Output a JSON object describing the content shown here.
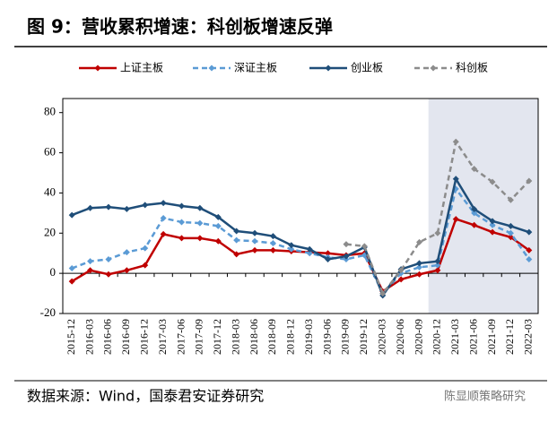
{
  "chart_data": {
    "type": "line",
    "title": "图 9：营收累积增速：科创板增速反弹",
    "source": "数据来源：Wind，国泰君安证券研究",
    "watermark": "陈显顺策略研究",
    "categories": [
      "2015-12",
      "2016-03",
      "2016-06",
      "2016-09",
      "2016-12",
      "2017-03",
      "2017-06",
      "2017-09",
      "2017-12",
      "2018-03",
      "2018-06",
      "2018-09",
      "2018-12",
      "2019-03",
      "2019-06",
      "2019-09",
      "2019-12",
      "2020-03",
      "2020-06",
      "2020-09",
      "2020-12",
      "2021-03",
      "2021-06",
      "2021-09",
      "2021-12",
      "2022-03"
    ],
    "series": [
      {
        "name": "上证主板",
        "color": "#c00000",
        "dashed": false,
        "values": [
          -4,
          1.5,
          -0.5,
          1.5,
          4,
          19.5,
          17.5,
          17.5,
          16,
          9.5,
          11.5,
          11.5,
          11,
          10.5,
          10,
          9,
          10,
          -9,
          -3,
          -0.5,
          1.5,
          27,
          24,
          20.5,
          18,
          11.5
        ]
      },
      {
        "name": "深证主板",
        "color": "#5b9bd5",
        "dashed": true,
        "values": [
          2.5,
          6,
          7,
          10.5,
          12.5,
          27.5,
          25.5,
          25,
          23.5,
          16.5,
          16,
          15,
          12,
          10,
          8,
          7,
          9,
          -10,
          0,
          3,
          4,
          42,
          30,
          24,
          20,
          7
        ]
      },
      {
        "name": "创业板",
        "color": "#1f4e79",
        "dashed": false,
        "values": [
          29,
          32.5,
          33,
          32,
          34,
          35,
          33.5,
          32.5,
          28,
          21,
          20,
          18.5,
          14,
          12,
          7,
          8.5,
          13,
          -11,
          2,
          5,
          6,
          47,
          32,
          26,
          23.5,
          20.5
        ]
      },
      {
        "name": "科创板",
        "color": "#8c8c8c",
        "dashed": true,
        "values": [
          null,
          null,
          null,
          null,
          null,
          null,
          null,
          null,
          null,
          null,
          null,
          null,
          null,
          null,
          null,
          14.5,
          13.5,
          -10,
          1.5,
          15.5,
          20,
          65.5,
          52,
          45.5,
          36.5,
          46
        ]
      }
    ],
    "ylim": [
      -20,
      87
    ],
    "yticks": [
      -20,
      0,
      20,
      40,
      60,
      80
    ],
    "highlight_range": [
      "2020-12",
      "2022-03"
    ],
    "highlight_color": "#e3e6ef",
    "legend": "top"
  }
}
